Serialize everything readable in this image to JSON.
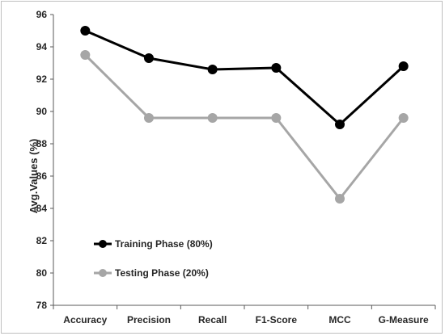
{
  "chart_data": {
    "type": "line",
    "title": "",
    "xlabel": "",
    "ylabel": "Avg.Values (%)",
    "ylim": [
      78,
      96
    ],
    "yticks": [
      78,
      80,
      82,
      84,
      86,
      88,
      90,
      92,
      94,
      96
    ],
    "grid": false,
    "legend_position": "bottom-left",
    "categories": [
      "Accuracy",
      "Precision",
      "Recall",
      "F1-Score",
      "MCC",
      "G-Measure"
    ],
    "series": [
      {
        "name": "Training Phase (80%)",
        "color": "#000000",
        "values": [
          95.0,
          93.3,
          92.6,
          92.7,
          89.2,
          92.8
        ]
      },
      {
        "name": "Testing Phase (20%)",
        "color": "#a6a6a6",
        "values": [
          93.5,
          89.6,
          89.6,
          89.6,
          84.6,
          89.6
        ]
      }
    ]
  }
}
